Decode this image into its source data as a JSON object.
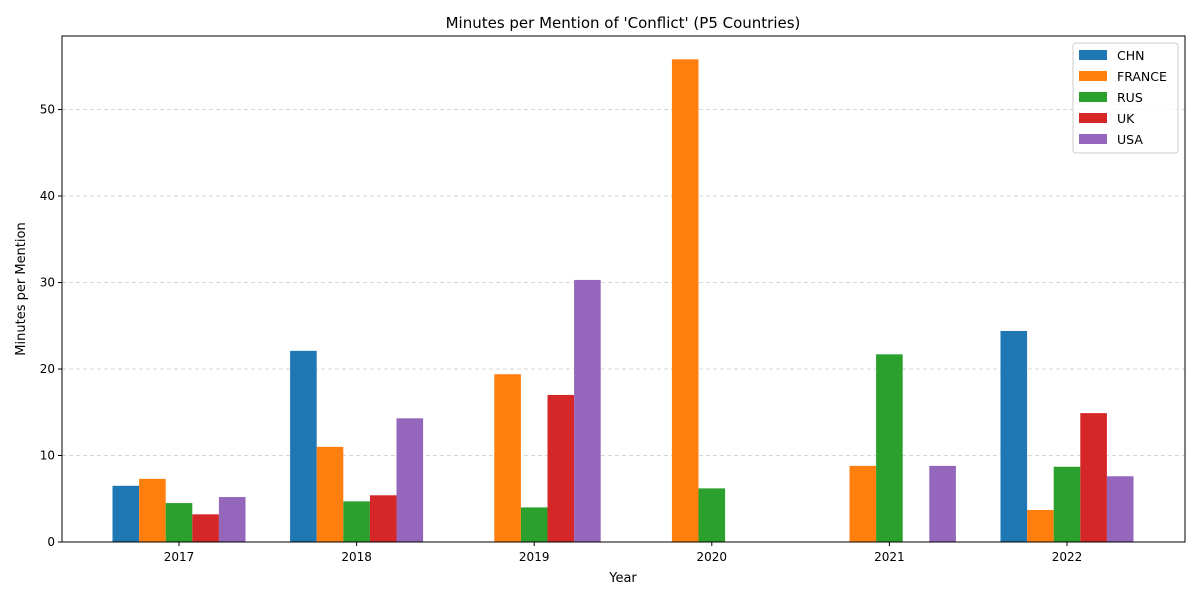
{
  "chart_data": {
    "type": "bar",
    "title": "Minutes per Mention of 'Conflict' (P5 Countries)",
    "xlabel": "Year",
    "ylabel": "Minutes per Mention",
    "categories": [
      "2017",
      "2018",
      "2019",
      "2020",
      "2021",
      "2022"
    ],
    "ylim": [
      0,
      58.5
    ],
    "yticks": [
      0,
      10,
      20,
      30,
      40,
      50
    ],
    "grid": "y-dashed",
    "legend_position": "top-right",
    "series": [
      {
        "name": "CHN",
        "color": "#1f77b4",
        "values": [
          6.5,
          22.1,
          null,
          null,
          null,
          24.4
        ]
      },
      {
        "name": "FRANCE",
        "color": "#ff7f0e",
        "values": [
          7.3,
          11.0,
          19.4,
          55.8,
          8.8,
          3.7
        ]
      },
      {
        "name": "RUS",
        "color": "#2ca02c",
        "values": [
          4.5,
          4.7,
          4.0,
          6.2,
          21.7,
          8.7
        ]
      },
      {
        "name": "UK",
        "color": "#d62728",
        "values": [
          3.2,
          5.4,
          17.0,
          null,
          null,
          14.9
        ]
      },
      {
        "name": "USA",
        "color": "#9467bd",
        "values": [
          5.2,
          14.3,
          30.3,
          null,
          8.8,
          7.6
        ]
      }
    ]
  }
}
